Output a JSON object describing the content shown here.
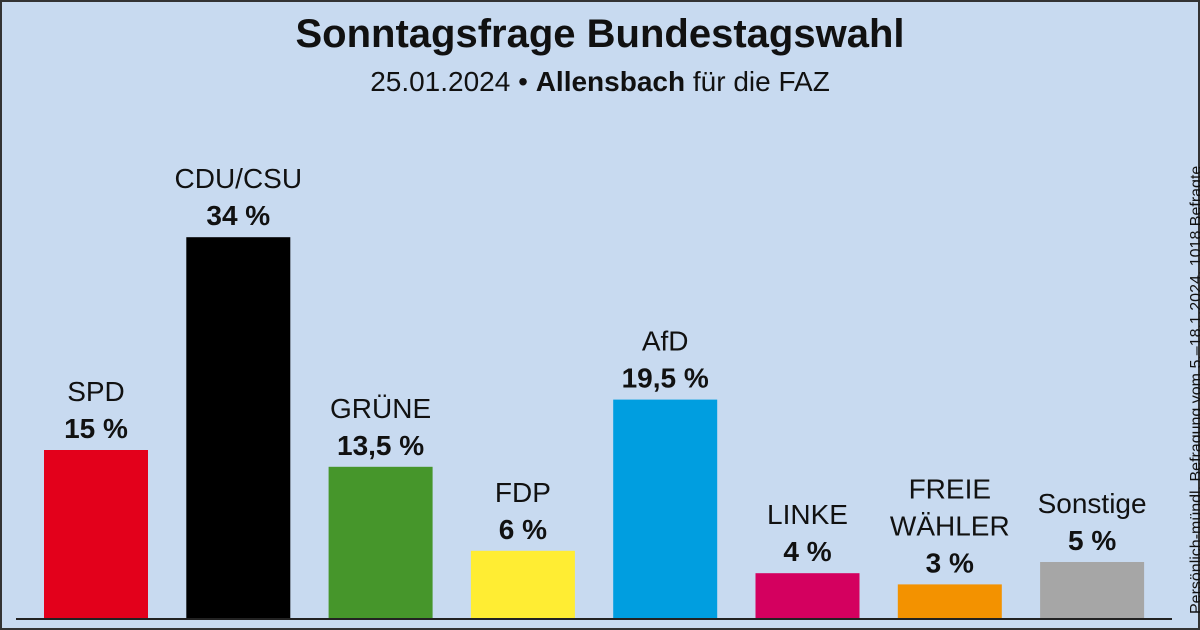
{
  "header": {
    "title": "Sonntagsfrage Bundestagswahl",
    "date": "25.01.2024",
    "separator": "•",
    "institute": "Allensbach",
    "client": "für die FAZ"
  },
  "side_note": "Persönlich-mündl. Befragung vom 5.–18.1.2024, 1018 Befragte",
  "chart_data": {
    "type": "bar",
    "title": "Sonntagsfrage Bundestagswahl",
    "categories": [
      "SPD",
      "CDU/CSU",
      "GRÜNE",
      "FDP",
      "AfD",
      "LINKE",
      "FREIE WÄHLER",
      "Sonstige"
    ],
    "category_lines": [
      [
        "SPD"
      ],
      [
        "CDU/CSU"
      ],
      [
        "GRÜNE"
      ],
      [
        "FDP"
      ],
      [
        "AfD"
      ],
      [
        "LINKE"
      ],
      [
        "FREIE",
        "WÄHLER"
      ],
      [
        "Sonstige"
      ]
    ],
    "values": [
      15,
      34,
      13.5,
      6,
      19.5,
      4,
      3,
      5
    ],
    "value_labels": [
      "15 %",
      "34 %",
      "13,5 %",
      "6 %",
      "19,5 %",
      "4 %",
      "3 %",
      "5 %"
    ],
    "colors": [
      "#e3001b",
      "#000000",
      "#46962b",
      "#ffed33",
      "#009ee0",
      "#d4005f",
      "#f39200",
      "#a6a6a6"
    ],
    "unit": "%",
    "grid": false,
    "legend": "none"
  }
}
